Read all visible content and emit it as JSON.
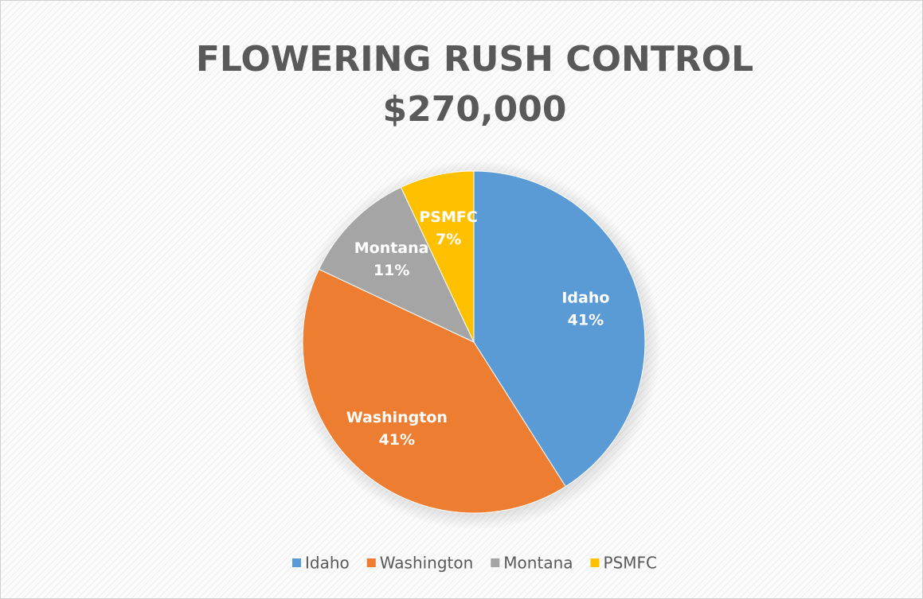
{
  "chart_data": {
    "type": "pie",
    "title": "FLOWERING RUSH CONTROL",
    "subtitle": "$270,000",
    "categories": [
      "Idaho",
      "Washington",
      "Montana",
      "PSMFC"
    ],
    "values": [
      41,
      41,
      11,
      7
    ],
    "value_labels": [
      "41%",
      "41%",
      "11%",
      "7%"
    ],
    "colors": [
      "#5b9bd5",
      "#ed7d31",
      "#a5a5a5",
      "#ffc000"
    ],
    "legend": "bottom"
  }
}
